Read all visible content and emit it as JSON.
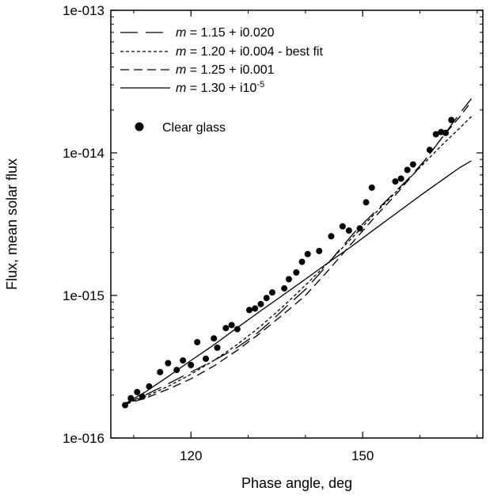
{
  "chart_data": {
    "type": "scatter",
    "title": "",
    "xlabel": "Phase angle, deg",
    "ylabel": "Flux, mean solar flux",
    "x_ticks": [
      120,
      150
    ],
    "x_tick_labels": [
      "120",
      "150"
    ],
    "xlim": [
      106,
      171
    ],
    "ylim": [
      1e-16,
      1e-13
    ],
    "y_scale": "log",
    "y_ticks": [
      1e-16,
      1e-15,
      1e-14,
      1e-13
    ],
    "y_tick_labels": [
      "1e-016",
      "1e-015",
      "1e-014",
      "1e-013"
    ],
    "grid": false,
    "legend_position": "top-left",
    "legend": [
      {
        "prefix": "m",
        "rest": " = 1.15 + i0.020",
        "sup": "",
        "style": "longdash"
      },
      {
        "prefix": "m",
        "rest": " = 1.20 + i0.004 - best fit",
        "sup": "",
        "style": "shortdash"
      },
      {
        "prefix": "m",
        "rest": " = 1.25 + i0.001",
        "sup": "",
        "style": "mediumdash"
      },
      {
        "prefix": "m",
        "rest": " = 1.30 + i10",
        "sup": "-5",
        "style": "solid"
      }
    ],
    "points_legend": "Clear glass",
    "series": [
      {
        "name": "m = 1.15 + i0.020",
        "style": "longdash",
        "x": [
          108,
          112,
          116,
          120,
          124,
          128,
          131,
          134,
          137,
          140,
          143,
          146,
          149,
          152,
          155,
          158,
          161,
          164,
          167,
          169
        ],
        "y": [
          1.7e-16,
          2e-16,
          2.4e-16,
          2.9e-16,
          3.5e-16,
          4.3e-16,
          5.2e-16,
          6.6e-16,
          8.6e-16,
          1.1e-15,
          1.5e-15,
          2.1e-15,
          2.9e-15,
          3.8e-15,
          5e-15,
          6.6e-15,
          9e-15,
          1.3e-14,
          1.9e-14,
          2.4e-14
        ]
      },
      {
        "name": "m = 1.20 + i0.004 - best fit",
        "style": "shortdash",
        "x": [
          108,
          112,
          116,
          120,
          124,
          128,
          132,
          136,
          140,
          144,
          148,
          152,
          156,
          160,
          164,
          167,
          169
        ],
        "y": [
          1.7e-16,
          1.95e-16,
          2.3e-16,
          2.8e-16,
          3.5e-16,
          4.5e-16,
          6e-16,
          8.3e-16,
          1.18e-15,
          1.7e-15,
          2.5e-15,
          3.7e-15,
          5.4e-15,
          7.9e-15,
          1.15e-14,
          1.5e-14,
          1.8e-14
        ]
      },
      {
        "name": "m = 1.25 + i0.001",
        "style": "mediumdash",
        "x": [
          108,
          112,
          116,
          120,
          124,
          128,
          132,
          136,
          140,
          144,
          148,
          152,
          156,
          160,
          164,
          167,
          169
        ],
        "y": [
          1.7e-16,
          1.9e-16,
          2.2e-16,
          2.6e-16,
          3.2e-16,
          4.1e-16,
          5.4e-16,
          7.3e-16,
          1e-15,
          1.5e-15,
          2.3e-15,
          3.5e-15,
          5.2e-15,
          8e-15,
          1.3e-14,
          1.8e-14,
          2.3e-14
        ]
      },
      {
        "name": "m = 1.30 + i10-5",
        "style": "solid",
        "x": [
          108,
          112,
          116,
          120,
          124,
          128,
          132,
          136,
          140,
          144,
          148,
          152,
          156,
          160,
          164,
          167,
          169
        ],
        "y": [
          1.7e-16,
          2.1e-16,
          2.7e-16,
          3.5e-16,
          4.5e-16,
          5.9e-16,
          7.7e-16,
          1e-15,
          1.3e-15,
          1.7e-15,
          2.2e-15,
          2.9e-15,
          3.8e-15,
          5e-15,
          6.5e-15,
          7.9e-15,
          8.8e-15
        ]
      },
      {
        "name": "Clear glass",
        "style": "points",
        "x": [
          108.5,
          109.5,
          110.6,
          111.5,
          112.7,
          114.6,
          116.0,
          117.5,
          118.6,
          120.0,
          121.1,
          122.6,
          124.0,
          124.6,
          126.1,
          127.1,
          128.1,
          130.2,
          131.2,
          132.2,
          133.2,
          134.2,
          136.3,
          137.1,
          138.4,
          139.4,
          140.4,
          142.4,
          144.5,
          146.5,
          147.6,
          149.5,
          150.6,
          151.6,
          155.7,
          156.7,
          157.8,
          158.8,
          161.7,
          162.8,
          163.7,
          164.5,
          165.5
        ],
        "y": [
          1.7e-16,
          1.9e-16,
          2.1e-16,
          1.95e-16,
          2.3e-16,
          2.9e-16,
          3.35e-16,
          3e-16,
          3.5e-16,
          3.25e-16,
          4.7e-16,
          3.6e-16,
          5e-16,
          4.3e-16,
          5.9e-16,
          6.2e-16,
          5.8e-16,
          7.9e-16,
          8.1e-16,
          8.7e-16,
          9.6e-16,
          1.05e-15,
          1.12e-15,
          1.3e-15,
          1.45e-15,
          1.72e-15,
          1.95e-15,
          2.05e-15,
          2.6e-15,
          3.05e-15,
          2.85e-15,
          2.95e-15,
          4.5e-15,
          5.7e-15,
          6.3e-15,
          6.6e-15,
          7.6e-15,
          8.3e-15,
          1.05e-14,
          1.35e-14,
          1.4e-14,
          1.38e-14,
          1.7e-14
        ]
      }
    ]
  }
}
